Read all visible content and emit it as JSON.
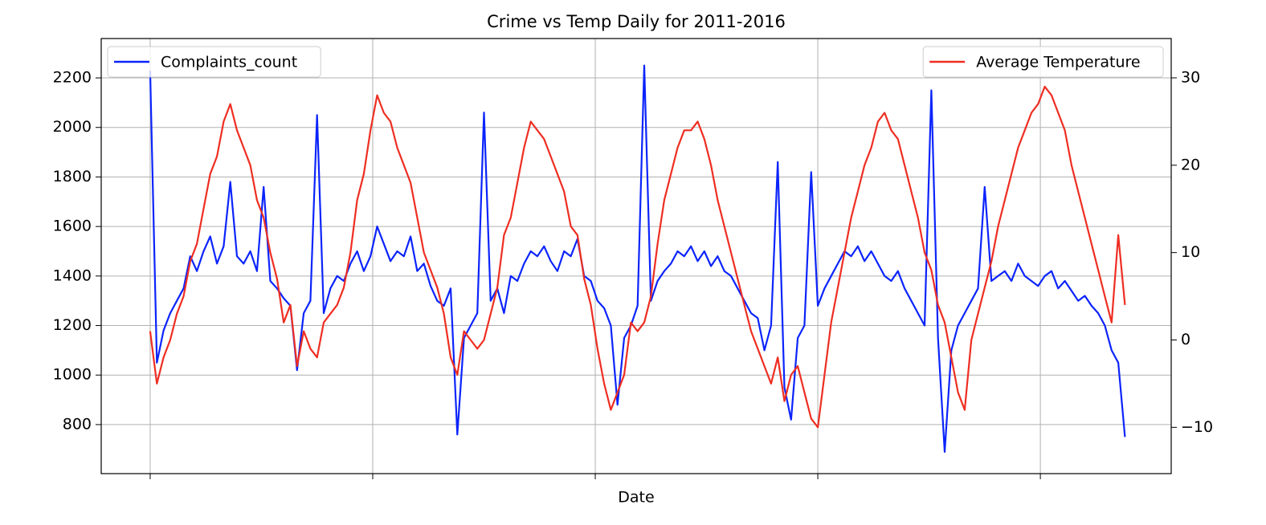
{
  "chart_data": {
    "type": "line",
    "title": "Crime vs Temp Daily for 2011-2016",
    "xlabel": "Date",
    "x": [
      0,
      15,
      30,
      45,
      60,
      75,
      90,
      105,
      120,
      135,
      150,
      165,
      180,
      195,
      210,
      225,
      240,
      255,
      270,
      285,
      300,
      315,
      330,
      345,
      360,
      375,
      390,
      405,
      420,
      435,
      450,
      465,
      480,
      495,
      510,
      525,
      540,
      555,
      570,
      585,
      600,
      615,
      630,
      645,
      660,
      675,
      690,
      705,
      720,
      735,
      750,
      765,
      780,
      795,
      810,
      825,
      840,
      855,
      870,
      885,
      900,
      915,
      930,
      945,
      960,
      975,
      990,
      1005,
      1020,
      1035,
      1050,
      1065,
      1080,
      1095,
      1110,
      1125,
      1140,
      1155,
      1170,
      1185,
      1200,
      1215,
      1230,
      1245,
      1260,
      1275,
      1290,
      1305,
      1320,
      1335,
      1350,
      1365,
      1380,
      1395,
      1410,
      1425,
      1440,
      1455,
      1470,
      1485,
      1500,
      1515,
      1530,
      1545,
      1560,
      1575,
      1590,
      1605,
      1620,
      1635,
      1650,
      1665,
      1680,
      1695,
      1710,
      1725,
      1740,
      1755,
      1770,
      1785,
      1800,
      1815,
      1830,
      1845,
      1860,
      1875,
      1890,
      1905,
      1920,
      1935,
      1950,
      1965,
      1980,
      1995,
      2010,
      2025,
      2040,
      2055,
      2070,
      2085,
      2100,
      2115,
      2130,
      2145,
      2160,
      2175,
      2190
    ],
    "series": [
      {
        "name": "Complaints_count",
        "color": "#0b24fb",
        "legend": "upper left",
        "values": [
          2230,
          1050,
          1180,
          1250,
          1300,
          1350,
          1480,
          1420,
          1500,
          1560,
          1450,
          1520,
          1780,
          1480,
          1450,
          1500,
          1420,
          1760,
          1380,
          1350,
          1310,
          1280,
          1020,
          1250,
          1300,
          2050,
          1250,
          1350,
          1400,
          1380,
          1450,
          1500,
          1420,
          1480,
          1600,
          1530,
          1460,
          1500,
          1480,
          1560,
          1420,
          1450,
          1360,
          1300,
          1280,
          1350,
          760,
          1150,
          1200,
          1250,
          2060,
          1300,
          1350,
          1250,
          1400,
          1380,
          1450,
          1500,
          1480,
          1520,
          1460,
          1420,
          1500,
          1480,
          1550,
          1400,
          1380,
          1300,
          1270,
          1200,
          880,
          1150,
          1200,
          1280,
          2250,
          1300,
          1380,
          1420,
          1450,
          1500,
          1480,
          1520,
          1460,
          1500,
          1440,
          1480,
          1420,
          1400,
          1350,
          1300,
          1250,
          1230,
          1100,
          1200,
          1860,
          950,
          820,
          1150,
          1200,
          1820,
          1280,
          1350,
          1400,
          1450,
          1500,
          1480,
          1520,
          1460,
          1500,
          1450,
          1400,
          1380,
          1420,
          1350,
          1300,
          1250,
          1200,
          2150,
          1150,
          690,
          1100,
          1200,
          1250,
          1300,
          1350,
          1760,
          1380,
          1400,
          1420,
          1380,
          1450,
          1400,
          1380,
          1360,
          1400,
          1420,
          1350,
          1380,
          1340,
          1300,
          1320,
          1280,
          1250,
          1200,
          1100,
          1050,
          750
        ]
      },
      {
        "name": "Average Temperature",
        "color": "#ee2e22",
        "axis": "y2",
        "legend": "upper right",
        "values": [
          1,
          -5,
          -2,
          0,
          3,
          5,
          9,
          11,
          15,
          19,
          21,
          25,
          27,
          24,
          22,
          20,
          16,
          14,
          10,
          7,
          2,
          4,
          -3,
          1,
          -1,
          -2,
          2,
          3,
          4,
          6,
          10,
          16,
          19,
          24,
          28,
          26,
          25,
          22,
          20,
          18,
          14,
          10,
          8,
          6,
          3,
          -2,
          -4,
          1,
          0,
          -1,
          0,
          3,
          6,
          12,
          14,
          18,
          22,
          25,
          24,
          23,
          21,
          19,
          17,
          13,
          12,
          7,
          4,
          -1,
          -5,
          -8,
          -6,
          -4,
          2,
          1,
          2,
          5,
          11,
          16,
          19,
          22,
          24,
          24,
          25,
          23,
          20,
          16,
          13,
          10,
          7,
          4,
          1,
          -1,
          -3,
          -5,
          -2,
          -7,
          -4,
          -3,
          -6,
          -9,
          -10,
          -4,
          2,
          6,
          10,
          14,
          17,
          20,
          22,
          25,
          26,
          24,
          23,
          20,
          17,
          14,
          10,
          8,
          4,
          2,
          -2,
          -6,
          -8,
          0,
          3,
          6,
          9,
          13,
          16,
          19,
          22,
          24,
          26,
          27,
          29,
          28,
          26,
          24,
          20,
          17,
          14,
          11,
          8,
          5,
          2,
          12,
          4
        ]
      }
    ],
    "xlim": [
      -110,
      2294
    ],
    "xticks": [
      0,
      500,
      1000,
      1500,
      2000
    ],
    "ylim": [
      602,
      2359
    ],
    "yticks": [
      800,
      1000,
      1200,
      1400,
      1600,
      1800,
      2000,
      2200
    ],
    "y2lim": [
      -15.3,
      34.5
    ],
    "y2ticks": [
      {
        "value": -10,
        "label": "−10"
      },
      0,
      10,
      20,
      30
    ],
    "grid": true
  }
}
